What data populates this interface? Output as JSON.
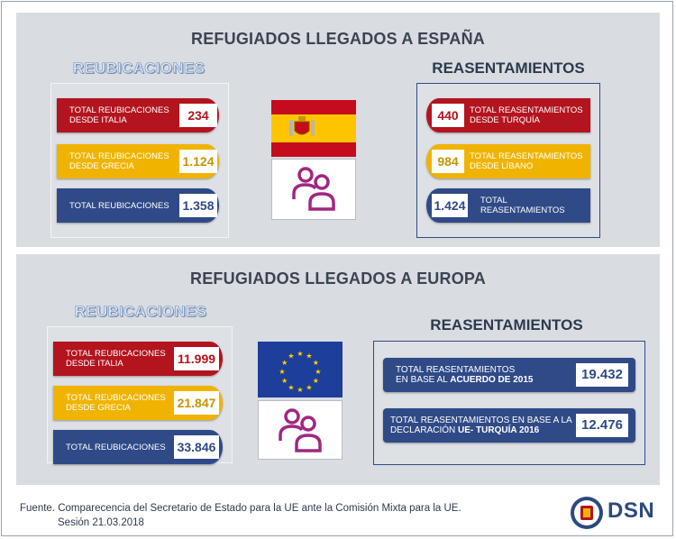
{
  "spain": {
    "title": "REFUGIADOS LLEGADOS A ESPAÑA",
    "reubicaciones": {
      "heading": "REUBICACIONES",
      "items": [
        {
          "label_1": "TOTAL REUBICACIONES",
          "label_2": "DESDE ITALIA",
          "value": "234",
          "color": "#b3141e"
        },
        {
          "label_1": "TOTAL REUBICACIONES",
          "label_2": "DESDE GRECIA",
          "value": "1.124",
          "color": "#f0b400"
        },
        {
          "label_1": "TOTAL REUBICACIONES",
          "label_2": "",
          "value": "1.358",
          "color": "#2f4a87"
        }
      ]
    },
    "reasentamientos": {
      "heading": "REASENTAMIENTOS",
      "items": [
        {
          "label_1": "TOTAL REASENTAMIENTOS",
          "label_2": "DESDE TURQUÍA",
          "value": "440",
          "color": "#b3141e"
        },
        {
          "label_1": "TOTAL REASENTAMIENTOS",
          "label_2": "DESDE LÍBANO",
          "value": "984",
          "color": "#f0b400"
        },
        {
          "label_1": "TOTAL",
          "label_2": "REASENTAMIENTOS",
          "value": "1.424",
          "color": "#2f4a87"
        }
      ]
    }
  },
  "europe": {
    "title": "REFUGIADOS LLEGADOS A EUROPA",
    "reubicaciones": {
      "heading": "REUBICACIONES",
      "items": [
        {
          "label_1": "TOTAL REUBICACIONES",
          "label_2": "DESDE ITALIA",
          "value": "11.999",
          "color": "#b3141e"
        },
        {
          "label_1": "TOTAL REUBICACIONES",
          "label_2": "DESDE GRECIA",
          "value": "21.847",
          "color": "#f0b400"
        },
        {
          "label_1": "TOTAL REUBICACIONES",
          "label_2": "",
          "value": "33.846",
          "color": "#2f4a87"
        }
      ]
    },
    "reasentamientos": {
      "heading": "REASENTAMIENTOS",
      "items": [
        {
          "label_1": "TOTAL REASENTAMIENTOS",
          "label_2_prefix": "EN BASE AL ",
          "label_2_bold": "ACUERDO DE 2015",
          "value": "19.432"
        },
        {
          "label_1": "TOTAL REASENTAMIENTOS EN BASE A LA",
          "label_2_prefix": "DECLARACIÓN ",
          "label_2_bold": "UE- TURQUÍA 2016",
          "value": "12.476"
        }
      ]
    }
  },
  "icons": {
    "spain_flag": "spain-flag-icon",
    "eu_flag": "eu-flag-icon",
    "people": "people-icon",
    "logo": "dsn-seal-icon"
  },
  "colors": {
    "red": "#b3141e",
    "amber": "#f0b400",
    "navy": "#2f4a87",
    "people": "#a1277f",
    "panel": "#d9dce1"
  },
  "footer": {
    "line_1": "Fuente. Comparecencia del Secretario de Estado para la UE ante la Comisión Mixta para la UE.",
    "line_2": "Sesión 21.03.2018"
  },
  "logo_text": "DSN"
}
